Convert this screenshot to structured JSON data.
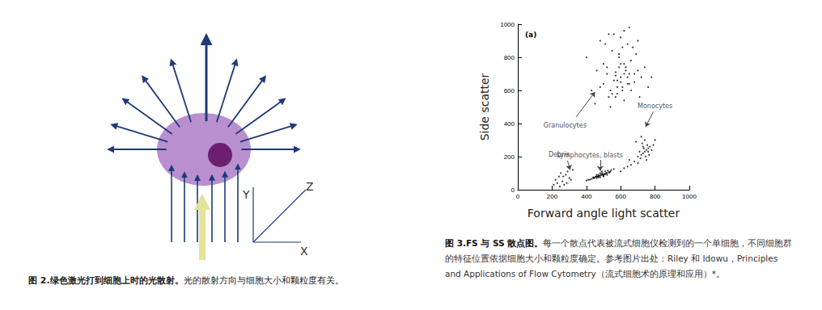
{
  "figure2": {
    "axes": {
      "x": "X",
      "y": "Y",
      "z": "Z"
    },
    "caption": {
      "title": "图 2.绿色激光打到细胞上时的光散射。",
      "text": "光的散射方向与细胞大小和颗粒度有关。"
    }
  },
  "chart_data": {
    "type": "scatter",
    "title": "(a)",
    "x_label": "Forward angle light scatter",
    "y_label": "Side scatter",
    "xlim": [
      0,
      1000
    ],
    "ylim": [
      0,
      1000
    ],
    "xticks": [
      0,
      200,
      400,
      600,
      800,
      1000
    ],
    "yticks": [
      0,
      200,
      400,
      600,
      800,
      1000
    ],
    "grid": false,
    "color": "#000000",
    "marker": "circle",
    "x": [
      600,
      620,
      580,
      640,
      560,
      610,
      590,
      650,
      630,
      570,
      520,
      680,
      700,
      540,
      660,
      500,
      720,
      480,
      610,
      590,
      550,
      640,
      600,
      570,
      530,
      690,
      620,
      580,
      660,
      510,
      460,
      740,
      430,
      760,
      620,
      560,
      700,
      480,
      650,
      540,
      600,
      580,
      620,
      640,
      520,
      680,
      590,
      610,
      570,
      630,
      400,
      780,
      450,
      710,
      500,
      650,
      550,
      600,
      670,
      530,
      420,
      440,
      460,
      480,
      500,
      520,
      540,
      430,
      450,
      470,
      490,
      510,
      530,
      460,
      480,
      500,
      440,
      470,
      490,
      510,
      455,
      475,
      495,
      515,
      465,
      485,
      505,
      445,
      525,
      545,
      560,
      400,
      410,
      480,
      500,
      470,
      490,
      520,
      460,
      535,
      740,
      750,
      730,
      760,
      720,
      770,
      745,
      735,
      755,
      710,
      780,
      725,
      765,
      700,
      740,
      750,
      790,
      715,
      760,
      730,
      680,
      660,
      640,
      620,
      600,
      700,
      650,
      800,
      690,
      720,
      220,
      240,
      260,
      280,
      300,
      250,
      270,
      230,
      290,
      310,
      320,
      210,
      265,
      285,
      245
    ],
    "values": [
      650,
      700,
      620,
      680,
      660,
      600,
      740,
      640,
      720,
      690,
      700,
      650,
      720,
      600,
      780,
      760,
      680,
      620,
      860,
      800,
      840,
      880,
      920,
      560,
      560,
      820,
      540,
      580,
      600,
      880,
      720,
      740,
      600,
      620,
      960,
      940,
      900,
      900,
      980,
      500,
      680,
      660,
      760,
      640,
      740,
      700,
      820,
      620,
      710,
      740,
      800,
      680,
      520,
      560,
      640,
      700,
      580,
      760,
      860,
      940,
      60,
      70,
      80,
      85,
      90,
      100,
      110,
      65,
      75,
      80,
      90,
      95,
      105,
      70,
      75,
      85,
      75,
      90,
      100,
      110,
      80,
      85,
      95,
      100,
      80,
      90,
      95,
      70,
      115,
      120,
      125,
      55,
      60,
      100,
      80,
      75,
      110,
      90,
      90,
      105,
      230,
      240,
      220,
      250,
      210,
      260,
      200,
      250,
      270,
      230,
      240,
      280,
      210,
      200,
      300,
      180,
      270,
      190,
      230,
      260,
      170,
      150,
      140,
      130,
      110,
      160,
      180,
      300,
      290,
      320,
      60,
      80,
      50,
      90,
      70,
      100,
      30,
      40,
      110,
      60,
      120,
      30,
      80,
      40,
      20
    ],
    "annotations": [
      {
        "text": "Granulocytes",
        "at": [
          275,
          390
        ],
        "arrow": [
          [
            340,
            440
          ],
          [
            450,
            590
          ]
        ]
      },
      {
        "text": "Lymphocytes, blasts",
        "at": [
          420,
          205
        ],
        "arrow": [
          [
            480,
            180
          ],
          [
            480,
            115
          ]
        ]
      },
      {
        "text": "Monocytes",
        "at": [
          800,
          505
        ],
        "arrow": [
          [
            790,
            470
          ],
          [
            745,
            380
          ]
        ]
      },
      {
        "text": "Debris",
        "at": [
          240,
          210
        ],
        "arrow": [
          [
            290,
            175
          ],
          [
            305,
            120
          ]
        ]
      }
    ],
    "caption": {
      "title": "图 3.FS 与 SS 散点图。",
      "text": "每一个散点代表被流式细胞仪检测到的一个单细胞，不同细胞群的特征位置依据细胞大小和颗粒度确定。参考图片出处：Riley 和 Idowu，Principles and Applications of Flow Cytometry（流式细胞术的原理和应用）*。"
    }
  }
}
